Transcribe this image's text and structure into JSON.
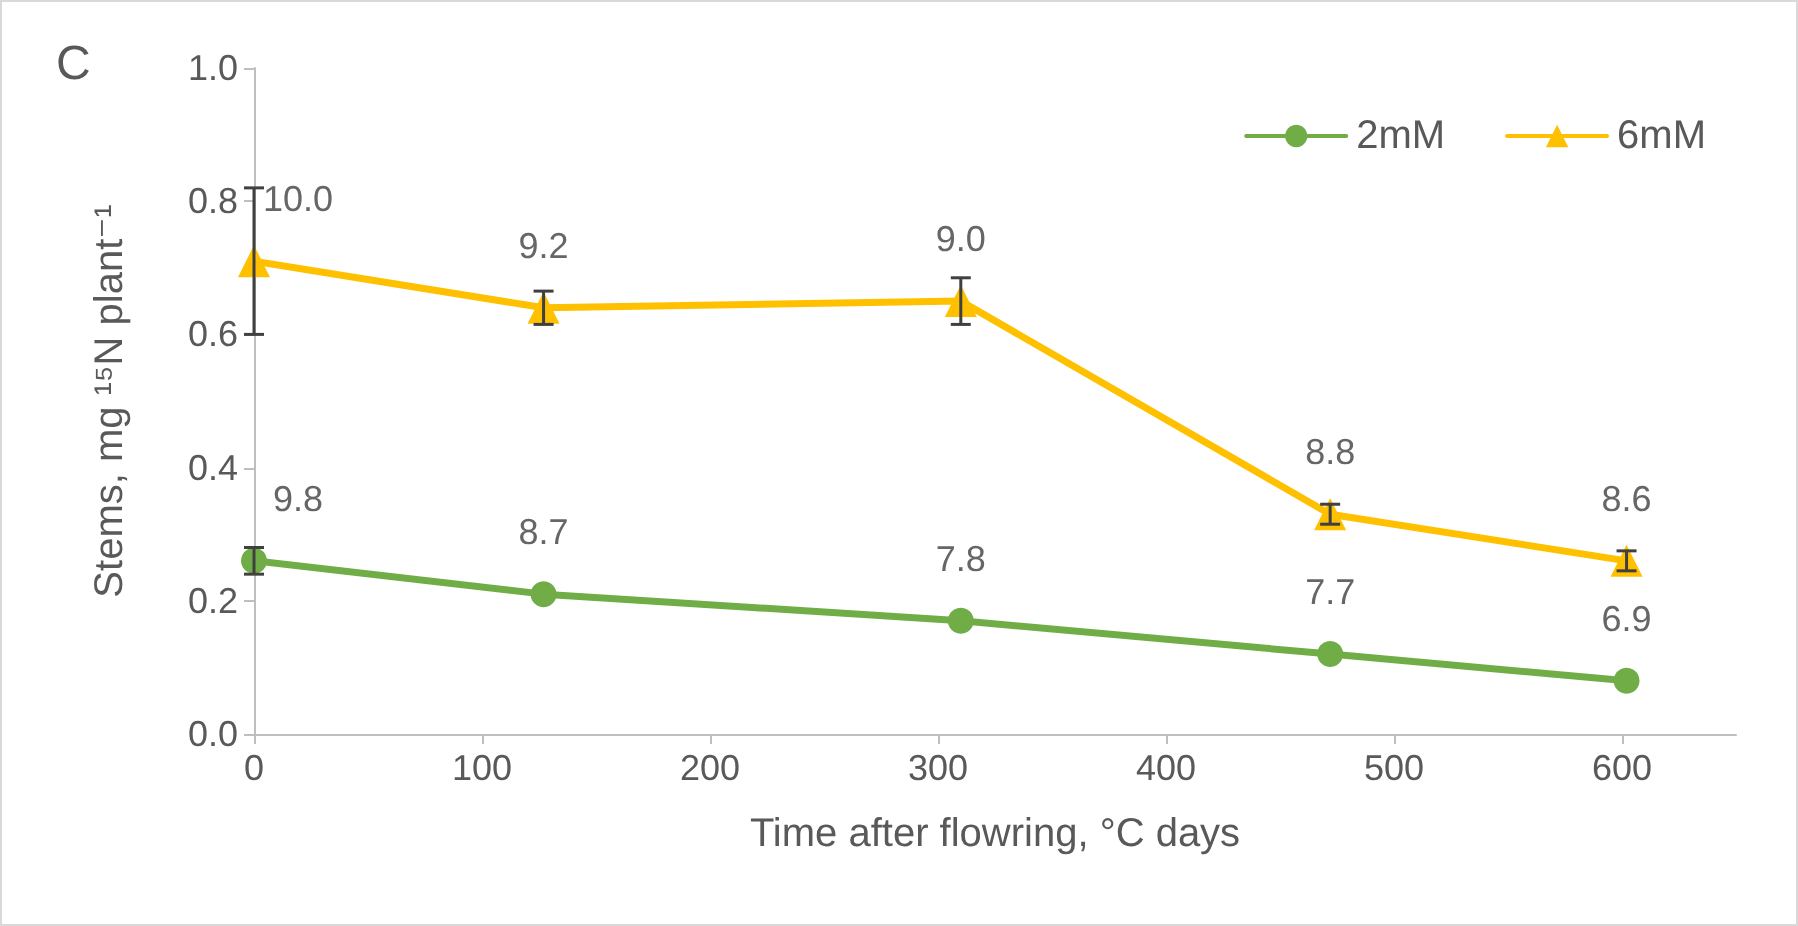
{
  "chart_data": {
    "type": "line",
    "title": "C",
    "xlabel": "Time after flowring, °C days",
    "ylabel": "Stems, mg ¹⁵N plant⁻¹",
    "x": [
      0,
      127,
      310,
      472,
      602
    ],
    "series": [
      {
        "name": "2mM",
        "color": "#70ad47",
        "marker": "circle",
        "values": [
          0.26,
          0.21,
          0.17,
          0.12,
          0.08
        ],
        "errors": [
          0.02,
          null,
          null,
          null,
          null
        ]
      },
      {
        "name": "6mM",
        "color": "#ffc000",
        "marker": "triangle",
        "values": [
          0.71,
          0.64,
          0.65,
          0.33,
          0.26
        ],
        "errors": [
          0.11,
          0.025,
          0.035,
          0.015,
          0.015
        ]
      }
    ],
    "annotations": [
      {
        "text": "9.8",
        "x": 0,
        "y": 0.26
      },
      {
        "text": "8.7",
        "x": 127,
        "y": 0.21
      },
      {
        "text": "7.8",
        "x": 310,
        "y": 0.17
      },
      {
        "text": "7.7",
        "x": 472,
        "y": 0.12
      },
      {
        "text": "6.9",
        "x": 602,
        "y": 0.08
      },
      {
        "text": "10.0",
        "x": 0,
        "y": 0.71
      },
      {
        "text": "9.2",
        "x": 127,
        "y": 0.64
      },
      {
        "text": "9.0",
        "x": 310,
        "y": 0.65
      },
      {
        "text": "8.8",
        "x": 472,
        "y": 0.33
      },
      {
        "text": "8.6",
        "x": 602,
        "y": 0.26
      }
    ],
    "xlim": [
      0,
      650
    ],
    "xticks": [
      0,
      100,
      200,
      300,
      400,
      500,
      600
    ],
    "ylim": [
      0,
      1
    ],
    "yticks": [
      {
        "value": 0,
        "label": "0.0"
      },
      0.2,
      0.4,
      0.6,
      0.8,
      {
        "value": 1,
        "label": "1.0"
      }
    ],
    "grid": false,
    "legend": "top right",
    "line_style": "solid"
  }
}
